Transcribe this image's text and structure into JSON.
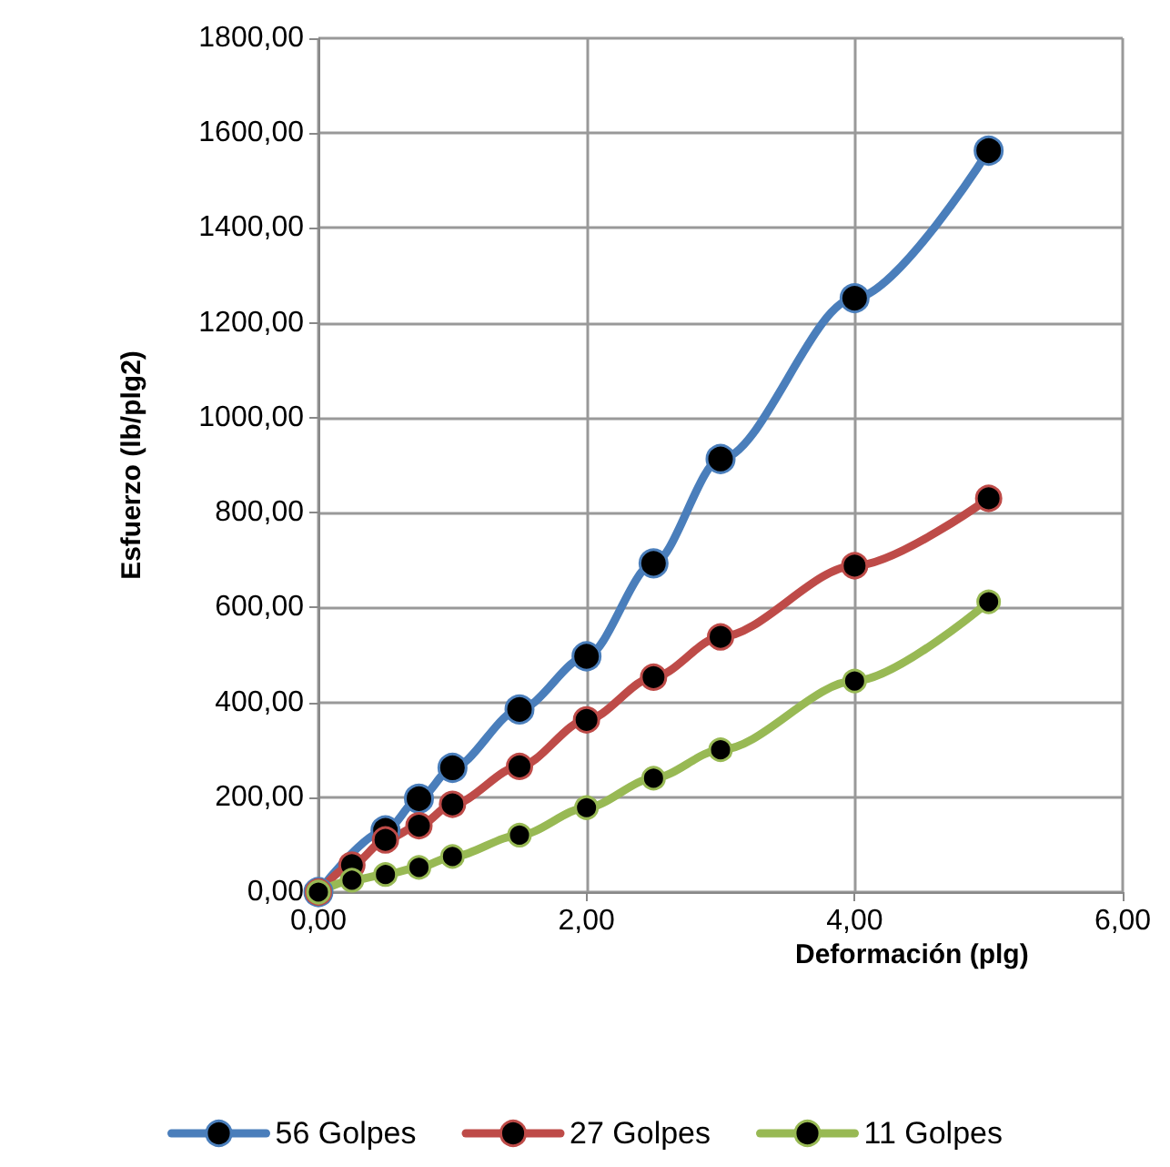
{
  "chart_data": {
    "type": "line",
    "xlabel": "Deformación (plg)",
    "ylabel": "Esfuerzo (lb/plg2)",
    "x": [
      0,
      0.25,
      0.5,
      0.75,
      1,
      1.5,
      2,
      2.5,
      3,
      4,
      5
    ],
    "series": [
      {
        "name": "56 Golpes",
        "color": "#4a7ebb",
        "values": [
          0,
          null,
          130,
          197,
          262,
          385,
          497,
          693,
          913,
          1252,
          1563
        ]
      },
      {
        "name": "27 Golpes",
        "color": "#be4b48",
        "values": [
          0,
          57,
          110,
          140,
          185,
          265,
          363,
          453,
          538,
          688,
          830
        ]
      },
      {
        "name": "11 Golpes",
        "color": "#98b954",
        "values": [
          0,
          25,
          37,
          52,
          75,
          120,
          178,
          240,
          300,
          445,
          612
        ]
      }
    ],
    "xlim": [
      0,
      6
    ],
    "xticks": [
      {
        "value": 0,
        "label": "0,00"
      },
      {
        "value": 2,
        "label": "2,00"
      },
      {
        "value": 4,
        "label": "4,00"
      },
      {
        "value": 6,
        "label": "6,00"
      }
    ],
    "ylim": [
      0,
      1800
    ],
    "yticks": [
      {
        "value": 0,
        "label": "0,00"
      },
      {
        "value": 200,
        "label": "200,00"
      },
      {
        "value": 400,
        "label": "400,00"
      },
      {
        "value": 600,
        "label": "600,00"
      },
      {
        "value": 800,
        "label": "800,00"
      },
      {
        "value": 1000,
        "label": "1000,00"
      },
      {
        "value": 1200,
        "label": "1200,00"
      },
      {
        "value": 1400,
        "label": "1400,00"
      },
      {
        "value": 1600,
        "label": "1600,00"
      },
      {
        "value": 1800,
        "label": "1800,00"
      }
    ],
    "grid": true,
    "legend": "bottom",
    "marker": "circle",
    "line_style": "solid"
  }
}
